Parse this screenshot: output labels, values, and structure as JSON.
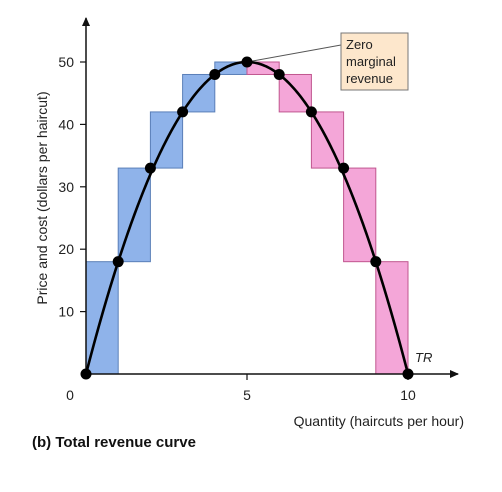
{
  "chart_data": {
    "type": "line",
    "xlabel": "Quantity (haircuts per hour)",
    "ylabel": "Price and cost (dollars per haircut)",
    "xlim": [
      0,
      11.4
    ],
    "ylim": [
      0,
      56
    ],
    "x_ticks": [
      0,
      5,
      10
    ],
    "y_ticks": [
      10,
      20,
      30,
      40,
      50
    ],
    "grid": false,
    "series": [
      {
        "name": "TR",
        "x": [
          0,
          1,
          2,
          3,
          4,
          5,
          6,
          7,
          8,
          9,
          10
        ],
        "y": [
          0,
          18,
          33,
          42,
          48,
          50,
          48,
          42,
          33,
          18,
          0
        ]
      }
    ],
    "bars_increasing": {
      "color": "#8fb3ea",
      "bars": [
        {
          "x0": 0,
          "x1": 1,
          "y0": 0,
          "y1": 18
        },
        {
          "x0": 1,
          "x1": 2,
          "y0": 18,
          "y1": 33
        },
        {
          "x0": 2,
          "x1": 3,
          "y0": 33,
          "y1": 42
        },
        {
          "x0": 3,
          "x1": 4,
          "y0": 42,
          "y1": 48
        },
        {
          "x0": 4,
          "x1": 5,
          "y0": 48,
          "y1": 50
        }
      ]
    },
    "bars_decreasing": {
      "color": "#f4a6d8",
      "bars": [
        {
          "x0": 5,
          "x1": 6,
          "y0": 48,
          "y1": 50
        },
        {
          "x0": 6,
          "x1": 7,
          "y0": 42,
          "y1": 48
        },
        {
          "x0": 7,
          "x1": 8,
          "y0": 33,
          "y1": 42
        },
        {
          "x0": 8,
          "x1": 9,
          "y0": 18,
          "y1": 33
        },
        {
          "x0": 9,
          "x1": 10,
          "y0": 0,
          "y1": 18
        }
      ]
    },
    "annotation": {
      "lines": [
        "Zero",
        "marginal",
        "revenue"
      ],
      "points_to": {
        "x": 5,
        "y": 50
      },
      "fill": "#fde7cc"
    }
  },
  "caption": "(b) Total revenue curve"
}
